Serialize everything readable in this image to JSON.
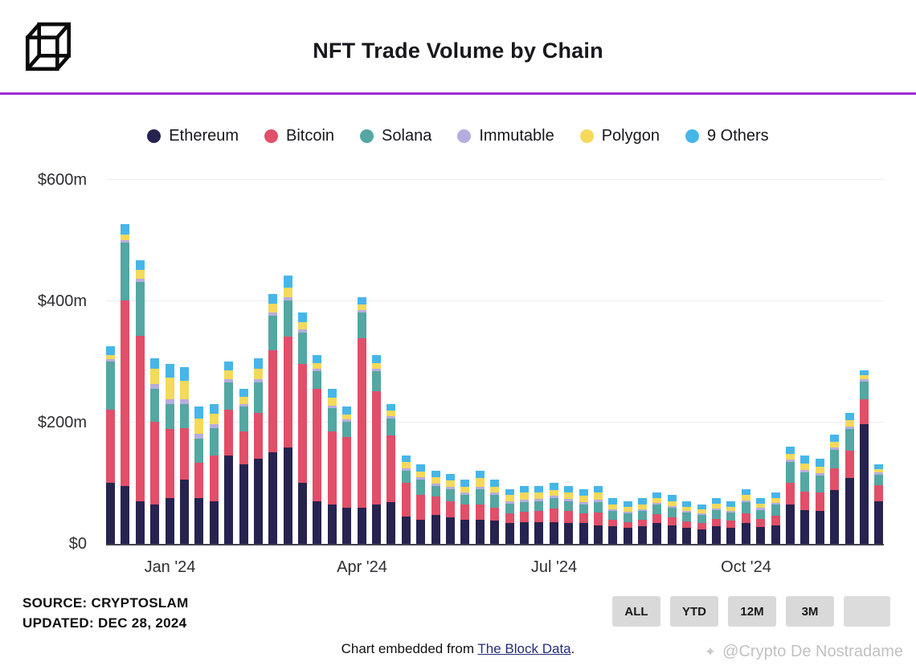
{
  "header": {
    "title": "NFT Trade Volume by Chain"
  },
  "colors": {
    "accent_rule": "#A22BD0",
    "button_bg": "#D9D9D9",
    "link": "#232C7C",
    "ethereum": "#262350",
    "bitcoin": "#E14F68",
    "solana": "#54A7A2",
    "immutable": "#B6ADDF",
    "polygon": "#F4D95B",
    "others": "#46B6E9"
  },
  "chart_data": {
    "type": "bar",
    "stacked": true,
    "title": "NFT Trade Volume by Chain",
    "unit": "$m (weekly)",
    "ylim": [
      0,
      600
    ],
    "grid": true,
    "legend_position": "top",
    "yticks": [
      {
        "value": 0,
        "label": "$0"
      },
      {
        "value": 200,
        "label": "$200m"
      },
      {
        "value": 400,
        "label": "$400m"
      },
      {
        "value": 600,
        "label": "$600m"
      }
    ],
    "xticks": [
      {
        "index": 4,
        "label": "Jan '24"
      },
      {
        "index": 17,
        "label": "Apr '24"
      },
      {
        "index": 30,
        "label": "Jul '24"
      },
      {
        "index": 43,
        "label": "Oct '24"
      }
    ],
    "series": [
      {
        "name": "Ethereum",
        "color": "#262350",
        "values": [
          100,
          95,
          70,
          65,
          75,
          105,
          75,
          70,
          145,
          130,
          140,
          150,
          158,
          100,
          70,
          65,
          60,
          60,
          65,
          68,
          45,
          40,
          48,
          44,
          40,
          40,
          38,
          34,
          35,
          35,
          35,
          34,
          34,
          31,
          29,
          26,
          29,
          34,
          30,
          26,
          24,
          29,
          27,
          34,
          28,
          30,
          64,
          55,
          54,
          88,
          108,
          196,
          70
        ]
      },
      {
        "name": "Bitcoin",
        "color": "#E14F68",
        "values": [
          120,
          305,
          272,
          135,
          113,
          85,
          58,
          75,
          75,
          55,
          75,
          168,
          182,
          195,
          185,
          120,
          115,
          278,
          185,
          110,
          55,
          40,
          30,
          26,
          24,
          25,
          22,
          16,
          18,
          19,
          23,
          20,
          16,
          21,
          11,
          10,
          11,
          15,
          14,
          11,
          10,
          12,
          11,
          16,
          13,
          16,
          36,
          31,
          30,
          36,
          45,
          42,
          26
        ]
      },
      {
        "name": "Solana",
        "color": "#54A7A2",
        "values": [
          80,
          95,
          88,
          55,
          42,
          40,
          40,
          45,
          45,
          40,
          50,
          57,
          60,
          52,
          28,
          38,
          25,
          42,
          33,
          28,
          20,
          25,
          17,
          20,
          16,
          25,
          20,
          16,
          16,
          16,
          17,
          16,
          15,
          17,
          14,
          14,
          14,
          15,
          15,
          14,
          13,
          14,
          13,
          18,
          15,
          18,
          34,
          31,
          28,
          30,
          36,
          28,
          18
        ]
      },
      {
        "name": "Immutable",
        "color": "#B6ADDF",
        "values": [
          3,
          3,
          5,
          8,
          8,
          8,
          8,
          6,
          5,
          5,
          5,
          5,
          5,
          5,
          4,
          4,
          4,
          4,
          4,
          4,
          4,
          4,
          4,
          4,
          4,
          4,
          4,
          4,
          4,
          4,
          4,
          4,
          4,
          4,
          3,
          3,
          3,
          3,
          3,
          3,
          3,
          3,
          3,
          3,
          3,
          3,
          4,
          4,
          4,
          4,
          4,
          4,
          3
        ]
      },
      {
        "name": "Polygon",
        "color": "#F4D95B",
        "values": [
          7,
          10,
          15,
          25,
          35,
          30,
          25,
          18,
          15,
          12,
          18,
          14,
          16,
          12,
          10,
          13,
          9,
          9,
          10,
          9,
          10,
          10,
          10,
          10,
          10,
          14,
          10,
          10,
          11,
          10,
          10,
          10,
          10,
          11,
          8,
          8,
          8,
          8,
          8,
          7,
          7,
          8,
          7,
          9,
          7,
          8,
          10,
          11,
          11,
          10,
          10,
          7,
          6
        ]
      },
      {
        "name": "9 Others",
        "color": "#46B6E9",
        "values": [
          15,
          17,
          15,
          17,
          22,
          22,
          19,
          16,
          15,
          13,
          17,
          16,
          19,
          16,
          13,
          15,
          12,
          12,
          13,
          11,
          11,
          11,
          11,
          11,
          11,
          12,
          11,
          10,
          11,
          11,
          11,
          11,
          11,
          11,
          10,
          9,
          10,
          10,
          10,
          9,
          8,
          9,
          9,
          10,
          9,
          10,
          12,
          13,
          13,
          12,
          12,
          8,
          7
        ]
      }
    ]
  },
  "footer": {
    "source": "SOURCE: CRYPTOSLAM",
    "updated": "UPDATED: DEC 28, 2024",
    "buttons": [
      "ALL",
      "YTD",
      "12M",
      "3M",
      ""
    ],
    "embed_prefix": "Chart embedded from ",
    "embed_link": "The Block Data",
    "embed_suffix": ".",
    "watermark": "@Crypto De Nostradame"
  }
}
